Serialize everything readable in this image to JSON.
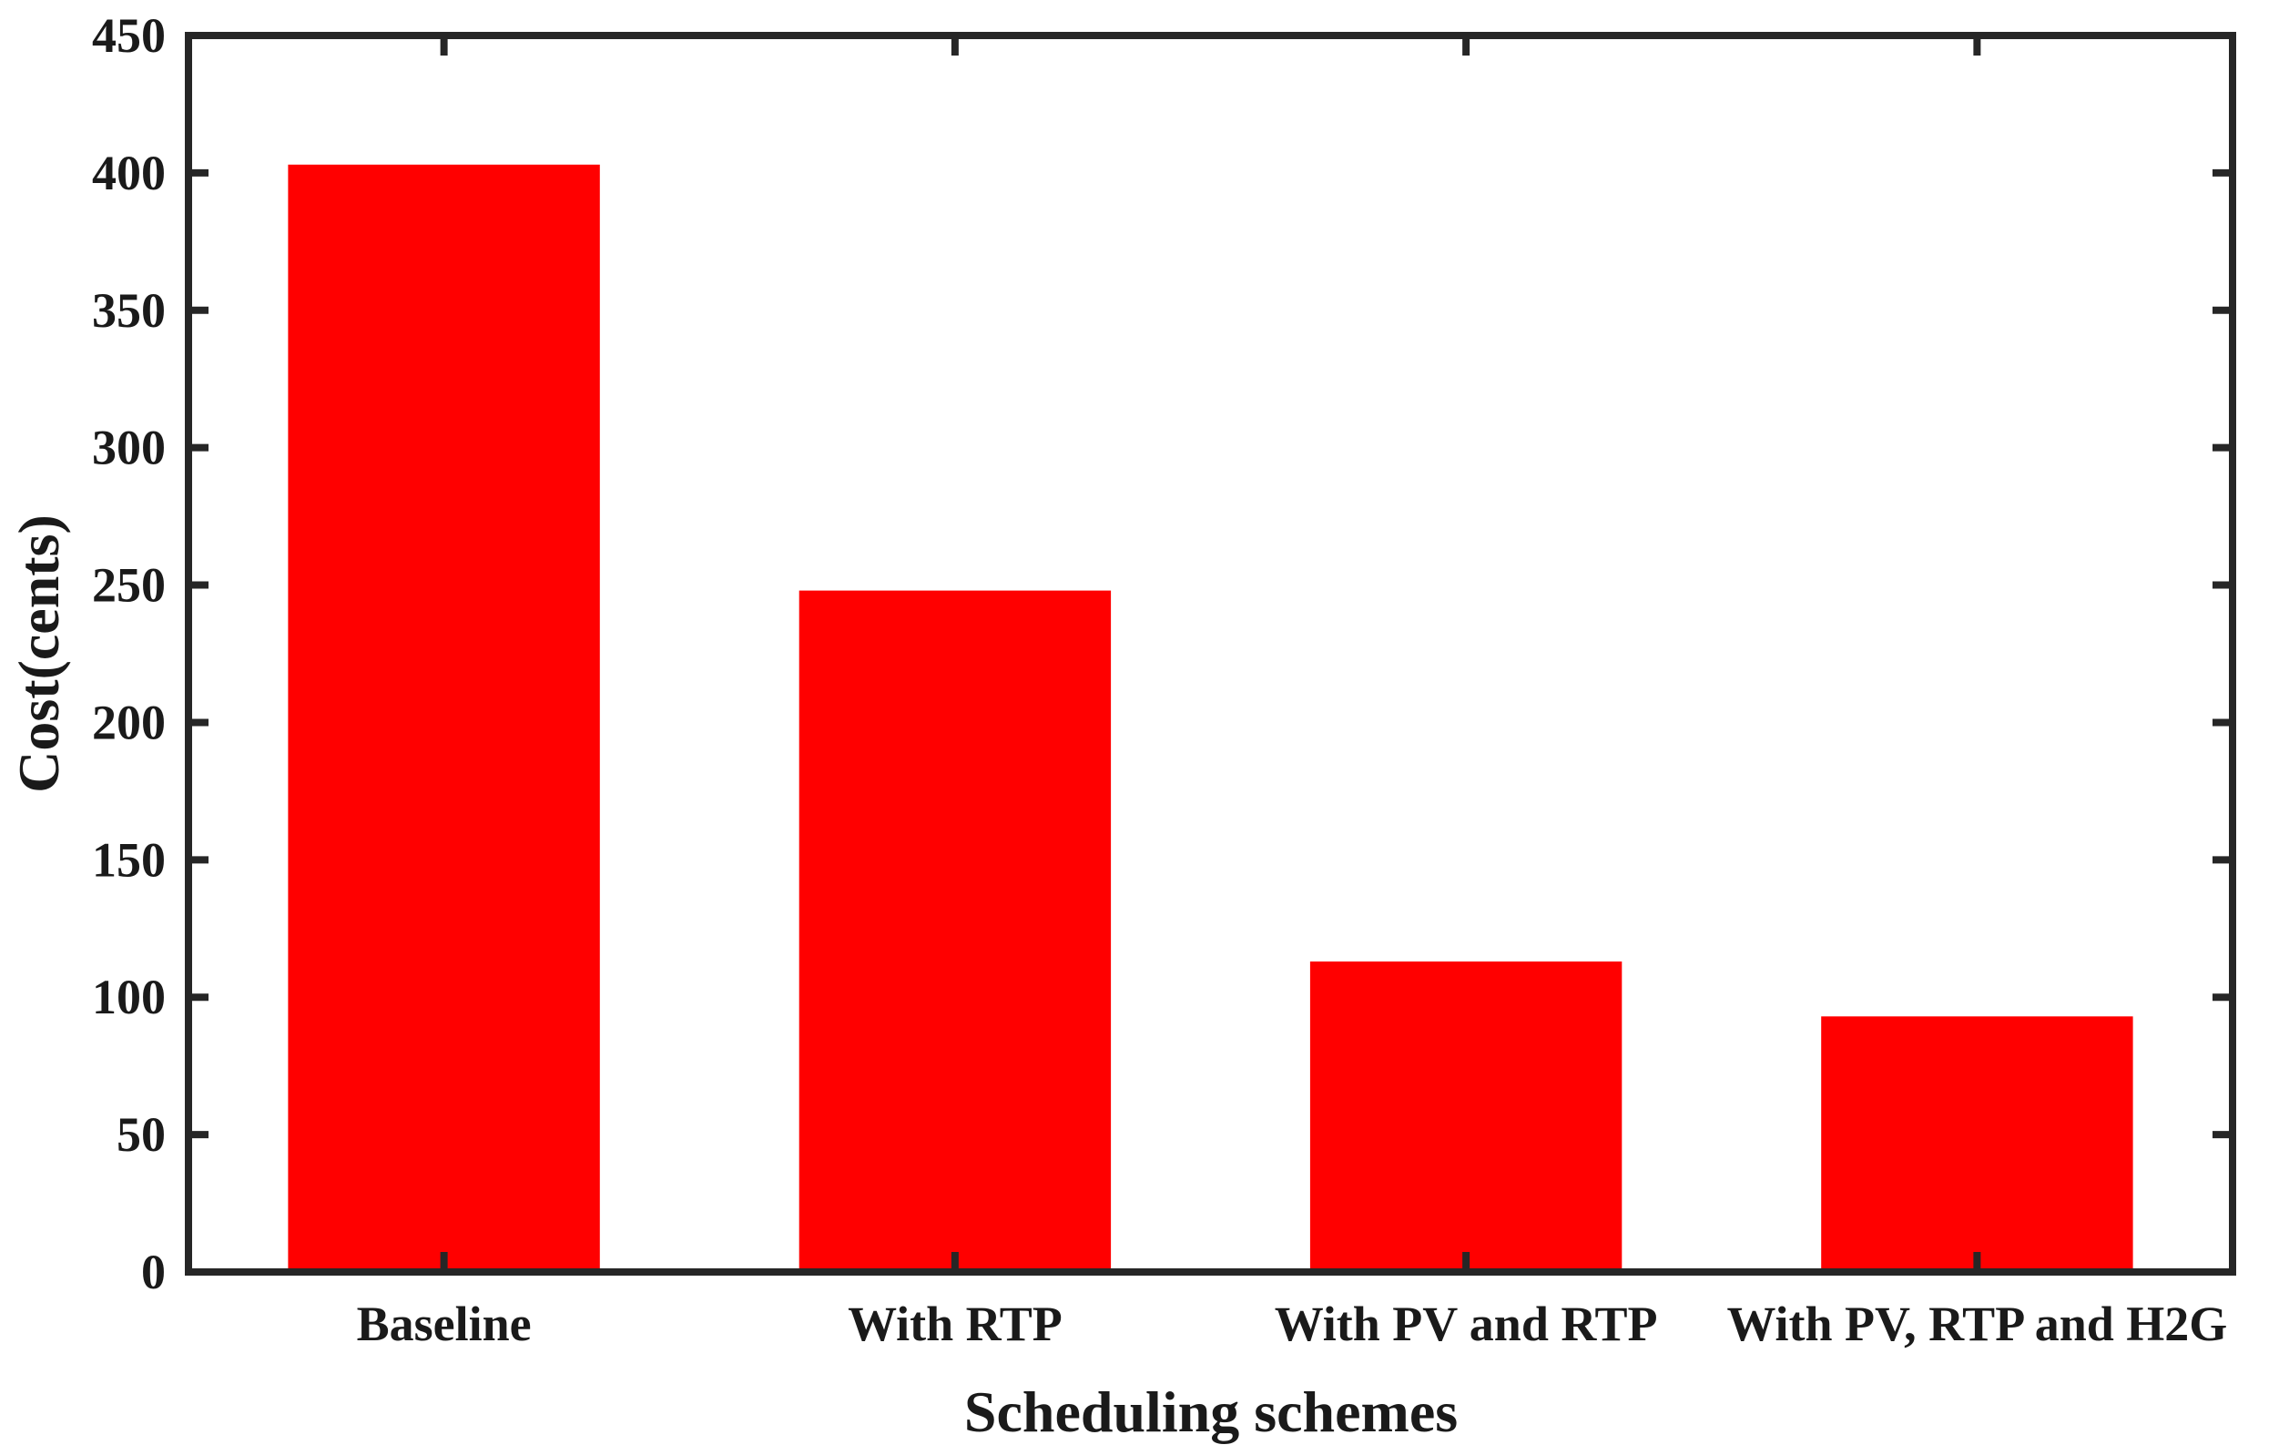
{
  "figure": {
    "background_color": "#ffffff",
    "title": ""
  },
  "chart_data": {
    "type": "bar",
    "categories": [
      "Baseline",
      "With RTP",
      "With PV and RTP",
      "With PV, RTP and H2G"
    ],
    "values": [
      403,
      248,
      113,
      93
    ],
    "series_name": "Cost",
    "title": "",
    "xlabel": "Scheduling schemes",
    "ylabel": "Cost(cents)",
    "ylim": [
      0,
      450
    ],
    "yticks": [
      0,
      50,
      100,
      150,
      200,
      250,
      300,
      350,
      400,
      450
    ],
    "grid": false,
    "legend_position": "none",
    "bar_color": "#ff0000",
    "axis_color": "#262626",
    "text_color": "#1a1a1a",
    "box": true,
    "tick_direction": "in",
    "bar_width_fraction": 0.61
  }
}
